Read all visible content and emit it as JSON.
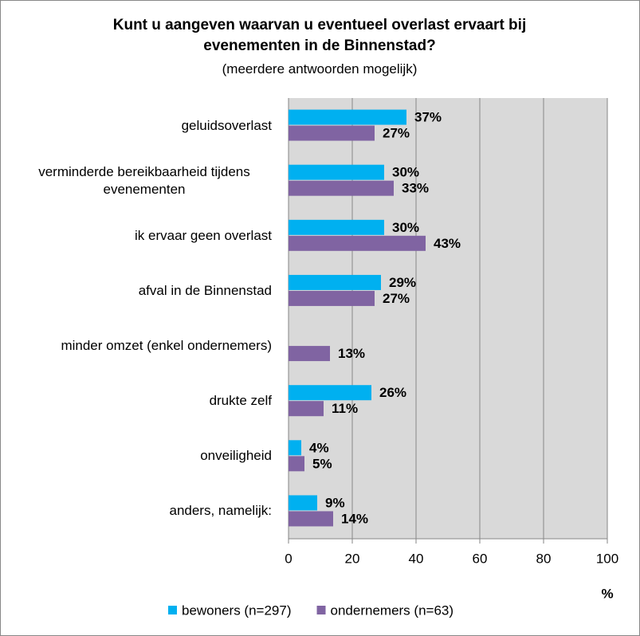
{
  "chart_data": {
    "type": "hbar",
    "title": "Kunt u aangeven waarvan u eventueel overlast ervaart bij evenementen in de Binnenstad?",
    "subtitle": "(meerdere antwoorden mogelijk)",
    "x_label": "%",
    "categories": [
      "geluidsoverlast",
      "verminderde bereikbaarheid tijdens evenementen",
      "ik ervaar geen overlast",
      "afval in de Binnenstad",
      "minder omzet (enkel ondernemers)",
      "drukte zelf",
      "onveiligheid",
      "anders, namelijk:"
    ],
    "series": [
      {
        "name": "bewoners (n=297)",
        "color": "#00b0f0",
        "values": [
          37,
          30,
          30,
          29,
          null,
          26,
          4,
          9
        ],
        "value_labels": [
          "37%",
          "30%",
          "30%",
          "29%",
          null,
          "26%",
          "4%",
          "9%"
        ]
      },
      {
        "name": "ondernemers (n=63)",
        "color": "#8064a2",
        "values": [
          27,
          33,
          43,
          27,
          13,
          11,
          5,
          14
        ],
        "value_labels": [
          "27%",
          "33%",
          "43%",
          "27%",
          "13%",
          "11%",
          "5%",
          "14%"
        ]
      }
    ],
    "xlim": [
      0,
      100
    ],
    "xticks": [
      0,
      20,
      40,
      60,
      80,
      100
    ],
    "grid": true,
    "plot_background": "#d9d9d9",
    "legend": "bottom"
  }
}
